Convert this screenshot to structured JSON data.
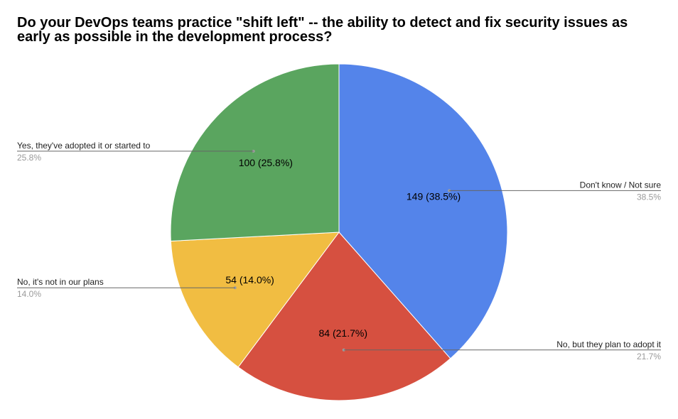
{
  "chart_data": {
    "type": "pie",
    "title": "Do your DevOps teams practice \"shift left\" -- the ability to detect and fix security issues as early as possible in the development process?",
    "legend": "labeled-callouts",
    "slices": [
      {
        "label": "Don't know / Not sure",
        "value": 149,
        "percent": "38.5%",
        "slice_label": "149 (38.5%)",
        "color": "#5484ea"
      },
      {
        "label": "No, but they plan to adopt it",
        "value": 84,
        "percent": "21.7%",
        "slice_label": "84 (21.7%)",
        "color": "#d65040"
      },
      {
        "label": "No, it's not in our plans",
        "value": 54,
        "percent": "14.0%",
        "slice_label": "54 (14.0%)",
        "color": "#f1bd42"
      },
      {
        "label": "Yes, they've adopted it or started to",
        "value": 100,
        "percent": "25.8%",
        "slice_label": "100 (25.8%)",
        "color": "#5aa55f"
      }
    ]
  }
}
